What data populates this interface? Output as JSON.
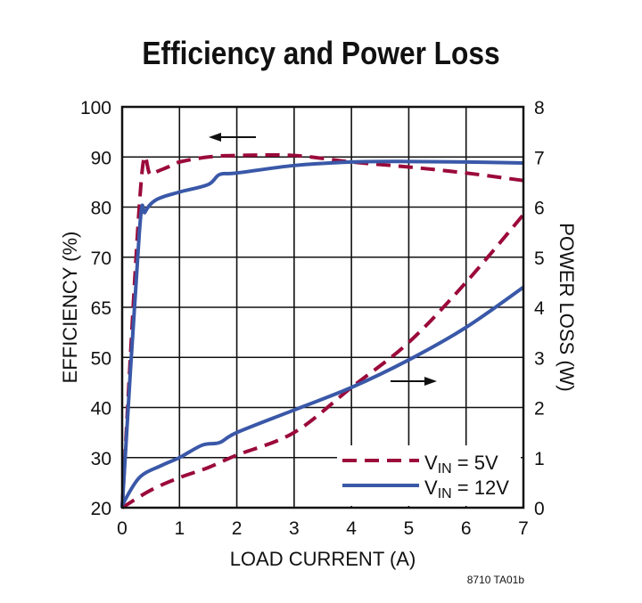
{
  "chart_data": {
    "type": "line",
    "title": "Efficiency and Power Loss",
    "xlabel": "LOAD CURRENT (A)",
    "ylabel": "EFFICIENCY (%)",
    "y2label": "POWER LOSS (W)",
    "xlim": [
      0,
      7
    ],
    "ylim": [
      20,
      100
    ],
    "y2lim": [
      0,
      8
    ],
    "xticks": [
      "0",
      "1",
      "2",
      "3",
      "4",
      "5",
      "6",
      "7"
    ],
    "yticks": [
      "20",
      "30",
      "40",
      "50",
      "65",
      "70",
      "80",
      "90",
      "100"
    ],
    "y2ticks": [
      "0",
      "1",
      "2",
      "3",
      "4",
      "5",
      "6",
      "7",
      "8"
    ],
    "grid": true,
    "legend_placement": "bottom-right",
    "legend": [
      {
        "prefix": "V",
        "sub": "IN",
        "suffix": " = 5V"
      },
      {
        "prefix": "V",
        "sub": "IN",
        "suffix": " = 12V"
      }
    ],
    "footnote": "8710 TA01b",
    "colors": {
      "vin5": "#9b0a3a",
      "vin12": "#3a58a8"
    },
    "series": [
      {
        "name": "VIN = 5V",
        "axis": "left",
        "style": "dashed",
        "x": [
          0,
          0.33,
          0.5,
          0.8,
          1,
          1.5,
          2,
          3,
          4,
          5,
          6,
          7
        ],
        "y": [
          20,
          84.9,
          86.5,
          88,
          89,
          90,
          90.3,
          90.3,
          89,
          88,
          86.8,
          85.3
        ]
      },
      {
        "name": "VIN = 12V",
        "axis": "left",
        "style": "solid",
        "x": [
          0,
          0.3,
          0.4,
          0.6,
          1,
          1.5,
          1.7,
          2,
          3,
          4,
          5,
          6,
          7
        ],
        "y": [
          20,
          75,
          79,
          81.5,
          83,
          84.5,
          86.5,
          86.8,
          88.3,
          89,
          89.1,
          89,
          88.8
        ]
      },
      {
        "name": "VIN = 5V",
        "axis": "right",
        "style": "dashed",
        "x": [
          0,
          0.5,
          1,
          1.5,
          2,
          3,
          4,
          5,
          6,
          7
        ],
        "y": [
          0,
          0.35,
          0.6,
          0.8,
          1.05,
          1.5,
          2.4,
          3.3,
          4.5,
          5.85
        ]
      },
      {
        "name": "VIN = 12V",
        "axis": "right",
        "style": "solid",
        "x": [
          0,
          0.3,
          0.7,
          1,
          1.4,
          1.7,
          2,
          3,
          4,
          5,
          6,
          7
        ],
        "y": [
          0.05,
          0.6,
          0.85,
          1.0,
          1.25,
          1.3,
          1.5,
          1.95,
          2.4,
          2.95,
          3.6,
          4.4
        ]
      }
    ]
  }
}
